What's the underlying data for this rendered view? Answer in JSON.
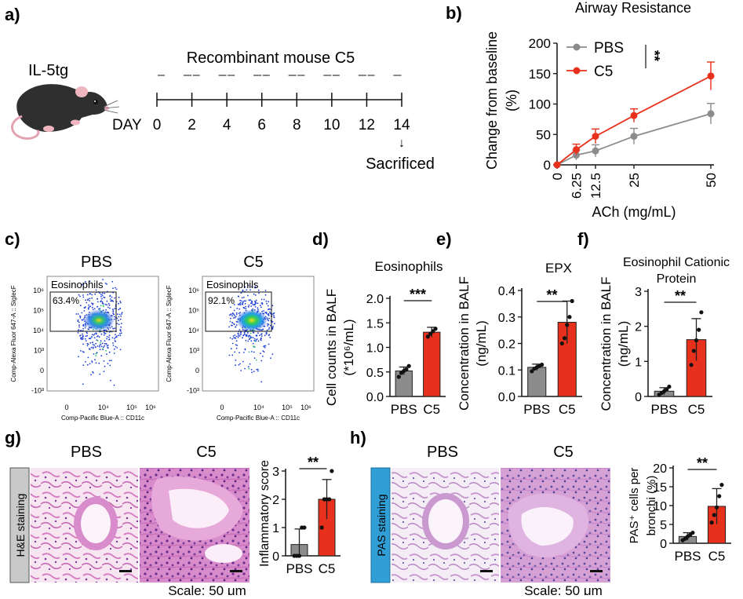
{
  "colors": {
    "pbs": "#8c8c8c",
    "c5": "#e8311c",
    "stain_he": "#c9c9c9",
    "stain_pas": "#2f9fd6",
    "gate": "#111111",
    "tissue_pink": "#d77fc3",
    "tissue_purple": "#7a3d9a"
  },
  "panel_a": {
    "letter": "a)",
    "mouse_label": "IL-5tg",
    "treatment": "Recombinant mouse C5",
    "day_prefix": "DAY",
    "days": [
      "0",
      "2",
      "4",
      "6",
      "8",
      "10",
      "12",
      "14"
    ],
    "endpoint": "Sacrificed",
    "endpoint_arrow": "↓"
  },
  "panel_c": {
    "letter": "c)",
    "plots": [
      {
        "title": "PBS",
        "gate_label": "Eosinophils",
        "percent": "63.4%"
      },
      {
        "title": "C5",
        "gate_label": "Eosinophils",
        "percent": "92.1%"
      }
    ],
    "ylabel": "Comp-Alexa Fluor 647-A :: SiglecF",
    "xlabel": "Comp-Pacific Blue-A :: CD11c",
    "y_ticks": [
      "10⁶",
      "10⁵",
      "10⁴",
      "10³",
      "0",
      "-10³"
    ],
    "x_ticks": [
      "0",
      "10⁴",
      "10⁵",
      "10⁶"
    ]
  },
  "panel_g": {
    "letter": "g)",
    "cond1": "PBS",
    "cond2": "C5",
    "stain_label": "H&E  staining",
    "scale": "Scale: 50 μm"
  },
  "panel_h": {
    "letter": "h)",
    "cond1": "PBS",
    "cond2": "C5",
    "stain_label": "PAS  staining",
    "scale": "Scale: 50 μm"
  },
  "chart_data": [
    {
      "id": "b",
      "letter": "b)",
      "type": "line",
      "title": "Airway Resistance",
      "xlabel": "ACh (mg/mL)",
      "ylabel_lines": [
        "Change from baseline",
        "(%)"
      ],
      "x": [
        0,
        6.25,
        12.5,
        25,
        50
      ],
      "x_tick_labels": [
        "0",
        "6.25",
        "12.5",
        "25",
        "50"
      ],
      "ylim": [
        0,
        200
      ],
      "y_ticks": [
        0,
        50,
        100,
        150,
        200
      ],
      "series": [
        {
          "name": "PBS",
          "values": [
            0,
            16,
            23,
            47,
            84
          ],
          "errors": [
            0,
            8,
            10,
            13,
            17
          ],
          "color": "#8c8c8c"
        },
        {
          "name": "C5",
          "values": [
            0,
            25,
            47,
            81,
            146
          ],
          "errors": [
            0,
            9,
            12,
            11,
            23
          ],
          "color": "#e8311c"
        }
      ],
      "significance": "**",
      "legend_position": "top-left"
    },
    {
      "id": "d",
      "letter": "d)",
      "type": "bar",
      "title": "Eosinophils",
      "ylabel_lines": [
        "Cell counts in BALF",
        "(*10⁶/mL)"
      ],
      "categories": [
        "PBS",
        "C5"
      ],
      "values": [
        0.52,
        1.31
      ],
      "errors": [
        0.08,
        0.1
      ],
      "points": [
        [
          0.4,
          0.48,
          0.52,
          0.55,
          0.62
        ],
        [
          1.22,
          1.28,
          1.33,
          1.38
        ]
      ],
      "ylim": [
        0,
        2.0
      ],
      "y_ticks": [
        0.0,
        0.5,
        1.0,
        1.5,
        2.0
      ],
      "y_tick_labels": [
        "0.0",
        "0.5",
        "1.0",
        "1.5",
        "2.0"
      ],
      "significance": "***"
    },
    {
      "id": "e",
      "letter": "e)",
      "type": "bar",
      "title": "EPX",
      "ylabel_lines": [
        "Concentration in BALF",
        "(ng/mL)"
      ],
      "categories": [
        "PBS",
        "C5"
      ],
      "values": [
        0.11,
        0.28
      ],
      "errors": [
        0.012,
        0.08
      ],
      "points": [
        [
          0.095,
          0.105,
          0.11,
          0.115,
          0.12
        ],
        [
          0.2,
          0.22,
          0.27,
          0.3,
          0.36
        ]
      ],
      "ylim": [
        0,
        0.4
      ],
      "y_ticks": [
        0.0,
        0.1,
        0.2,
        0.3,
        0.4
      ],
      "y_tick_labels": [
        "0.0",
        "0.1",
        "0.2",
        "0.3",
        "0.4"
      ],
      "significance": "**"
    },
    {
      "id": "f",
      "letter": "f)",
      "type": "bar",
      "title_lines": [
        "Eosinophil Cationic",
        "Protein"
      ],
      "ylabel_lines": [
        "Concentration in BALF",
        "(ng/mL)"
      ],
      "categories": [
        "PBS",
        "C5"
      ],
      "values": [
        0.15,
        1.62
      ],
      "errors": [
        0.1,
        0.6
      ],
      "points": [
        [
          0.05,
          0.1,
          0.15,
          0.2,
          0.28
        ],
        [
          0.9,
          1.3,
          1.6,
          1.9,
          2.4
        ]
      ],
      "ylim": [
        0,
        3
      ],
      "y_ticks": [
        0,
        1,
        2,
        3
      ],
      "y_tick_labels": [
        "0",
        "1",
        "2",
        "3"
      ],
      "significance": "**"
    },
    {
      "id": "g",
      "type": "bar",
      "ylabel_lines": [
        "Inflammatory score"
      ],
      "categories": [
        "PBS",
        "C5"
      ],
      "values": [
        0.4,
        2.0
      ],
      "errors": [
        0.55,
        0.7
      ],
      "points": [
        [
          0,
          0,
          0,
          1,
          1
        ],
        [
          1,
          2,
          2,
          2,
          3
        ]
      ],
      "ylim": [
        0,
        3
      ],
      "y_ticks": [
        0,
        1,
        2,
        3
      ],
      "y_tick_labels": [
        "0",
        "1",
        "2",
        "3"
      ],
      "significance": "**"
    },
    {
      "id": "h",
      "type": "bar",
      "ylabel_lines": [
        "PAS⁺ cells per",
        "bronchi (%)"
      ],
      "categories": [
        "PBS",
        "C5"
      ],
      "values": [
        1.8,
        9.8
      ],
      "errors": [
        1.0,
        4.7
      ],
      "points": [
        [
          0.8,
          1.2,
          1.8,
          2.2,
          2.8
        ],
        [
          5.5,
          7.5,
          9.5,
          12.5,
          15.5
        ]
      ],
      "ylim": [
        0,
        20
      ],
      "y_ticks": [
        0,
        5,
        10,
        15,
        20
      ],
      "y_tick_labels": [
        "0",
        "5",
        "10",
        "15",
        "20"
      ],
      "significance": "**"
    }
  ]
}
